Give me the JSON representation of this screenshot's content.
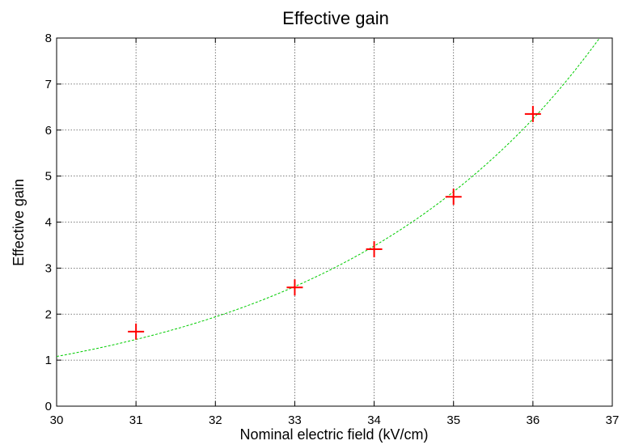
{
  "chart_data": {
    "type": "scatter",
    "title": "Effective gain",
    "xlabel": "Nominal electric field (kV/cm)",
    "ylabel": "Effective gain",
    "xlim": [
      30,
      37
    ],
    "ylim": [
      0,
      8
    ],
    "xticks": [
      "30",
      "31",
      "32",
      "33",
      "34",
      "35",
      "36",
      "37"
    ],
    "yticks": [
      "0",
      "1",
      "2",
      "3",
      "4",
      "5",
      "6",
      "7",
      "8"
    ],
    "grid": true,
    "legend": "none",
    "series": [
      {
        "kind": "points",
        "marker": "plus",
        "color": "#ff0000",
        "x": [
          31,
          33,
          34,
          35,
          36
        ],
        "y": [
          1.62,
          2.58,
          3.41,
          4.55,
          6.35
        ]
      },
      {
        "kind": "fit-curve",
        "style": "dashed",
        "color": "#00cc00",
        "x": [
          30,
          31,
          32,
          33,
          34,
          35,
          36,
          36.84
        ],
        "y": [
          1.08,
          1.45,
          1.94,
          2.6,
          3.48,
          4.66,
          6.24,
          8.0
        ]
      }
    ]
  }
}
